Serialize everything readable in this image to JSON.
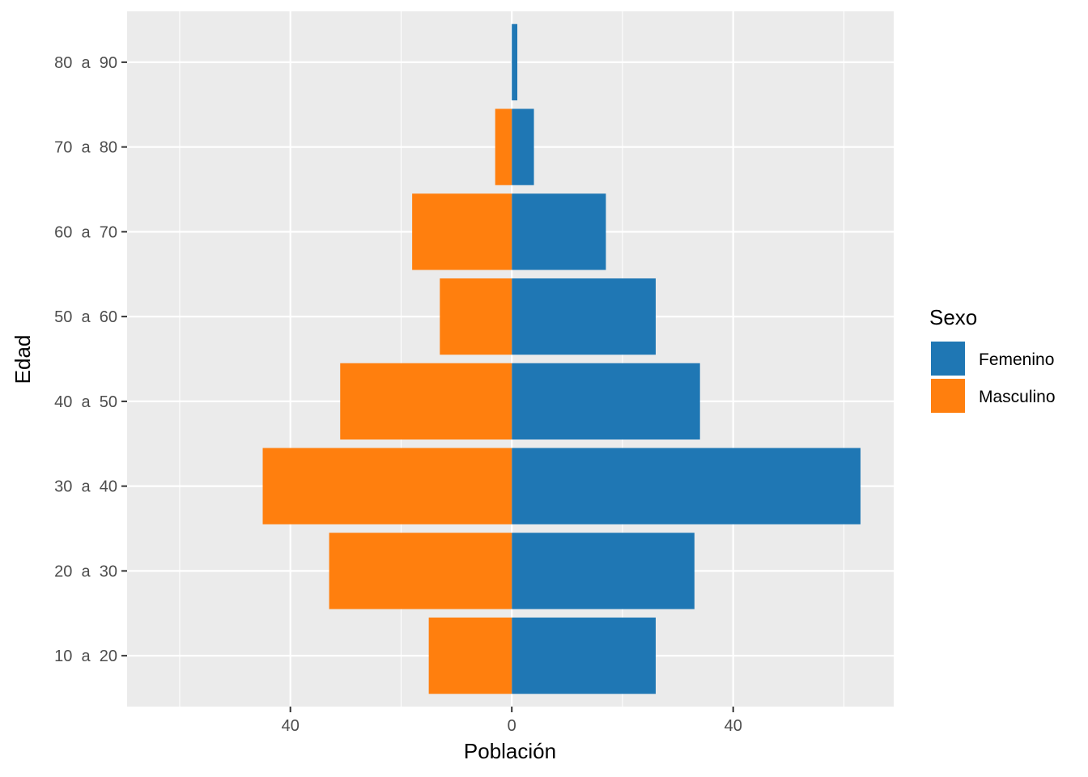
{
  "chart_data": {
    "type": "bar",
    "orientation": "horizontal",
    "subtype": "population-pyramid",
    "categories": [
      "10  a  20",
      "20  a  30",
      "30  a  40",
      "40  a  50",
      "50  a  60",
      "60  a  70",
      "70  a  80",
      "80  a  90"
    ],
    "series": [
      {
        "name": "Femenino",
        "color": "#1f77b4",
        "values": [
          26,
          33,
          63,
          34,
          26,
          17,
          4,
          1
        ]
      },
      {
        "name": "Masculino",
        "color": "#ff7f0e",
        "values": [
          15,
          33,
          45,
          31,
          13,
          18,
          3,
          0
        ]
      }
    ],
    "masculino_plotted_as_negative": true,
    "xlabel": "Población",
    "ylabel": "Edad",
    "xlim": [
      -69.5,
      69
    ],
    "x_ticks": [
      -40,
      0,
      40
    ],
    "x_tick_labels": [
      "40",
      "0",
      "40"
    ],
    "x_minor_grid": [
      -60,
      -20,
      20,
      60
    ],
    "grid": true,
    "panel_background": "#ebebeb",
    "legend": {
      "title": "Sexo",
      "position": "right",
      "entries": [
        "Femenino",
        "Masculino"
      ]
    }
  }
}
